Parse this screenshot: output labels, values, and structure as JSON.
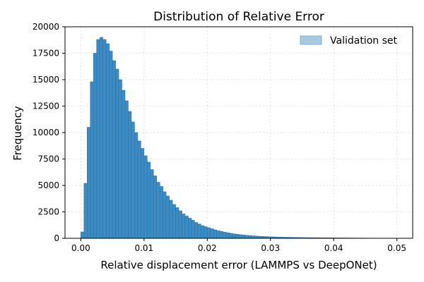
{
  "chart_data": {
    "type": "bar",
    "title": "Distribution of Relative Error",
    "xlabel": "Relative displacement error (LAMMPS vs DeepONet)",
    "ylabel": "Frequency",
    "xlim": [
      -0.0025,
      0.0525
    ],
    "ylim": [
      0,
      20000
    ],
    "xticks": [
      0.0,
      0.01,
      0.02,
      0.03,
      0.04,
      0.05
    ],
    "xtick_labels": [
      "0.00",
      "0.01",
      "0.02",
      "0.03",
      "0.04",
      "0.05"
    ],
    "yticks": [
      0,
      2500,
      5000,
      7500,
      10000,
      12500,
      15000,
      17500,
      20000
    ],
    "ytick_labels": [
      "0",
      "2500",
      "5000",
      "7500",
      "10000",
      "12500",
      "15000",
      "17500",
      "20000"
    ],
    "grid": true,
    "legend": {
      "position": "top-right",
      "entries": [
        "Validation set"
      ]
    },
    "series": [
      {
        "name": "Validation set",
        "bin_width": 0.0005,
        "bin_starts": [
          0.0,
          0.0005,
          0.001,
          0.0015,
          0.002,
          0.0025,
          0.003,
          0.0035,
          0.004,
          0.0045,
          0.005,
          0.0055,
          0.006,
          0.0065,
          0.007,
          0.0075,
          0.008,
          0.0085,
          0.009,
          0.0095,
          0.01,
          0.0105,
          0.011,
          0.0115,
          0.012,
          0.0125,
          0.013,
          0.0135,
          0.014,
          0.0145,
          0.015,
          0.0155,
          0.016,
          0.0165,
          0.017,
          0.0175,
          0.018,
          0.0185,
          0.019,
          0.0195,
          0.02,
          0.0205,
          0.021,
          0.0215,
          0.022,
          0.0225,
          0.023,
          0.0235,
          0.024,
          0.0245,
          0.025,
          0.0255,
          0.026,
          0.0265,
          0.027,
          0.0275,
          0.028,
          0.0285,
          0.029,
          0.0295,
          0.03,
          0.0305,
          0.031,
          0.0315,
          0.032,
          0.0325,
          0.033,
          0.0335,
          0.034,
          0.0345,
          0.035,
          0.0355,
          0.036,
          0.0365,
          0.037,
          0.0375,
          0.038,
          0.0385,
          0.039,
          0.0395,
          0.04,
          0.0405,
          0.041,
          0.0415,
          0.042,
          0.0425,
          0.043,
          0.0435,
          0.044,
          0.0445,
          0.045,
          0.0455,
          0.046,
          0.0465,
          0.047,
          0.0475,
          0.048,
          0.0485,
          0.049,
          0.0495
        ],
        "values": [
          600,
          5200,
          10500,
          14800,
          17500,
          18800,
          19000,
          18800,
          18400,
          17700,
          16800,
          16000,
          15000,
          14000,
          13000,
          12000,
          11000,
          10000,
          9200,
          8500,
          7800,
          7200,
          6500,
          5900,
          5300,
          4900,
          4400,
          4000,
          3600,
          3200,
          2900,
          2600,
          2300,
          2100,
          1900,
          1700,
          1500,
          1350,
          1200,
          1100,
          1000,
          900,
          800,
          720,
          650,
          580,
          520,
          470,
          420,
          380,
          340,
          310,
          280,
          255,
          230,
          210,
          190,
          175,
          160,
          148,
          136,
          125,
          115,
          107,
          99,
          92,
          86,
          80,
          75,
          70,
          66,
          62,
          58,
          55,
          52,
          49,
          46,
          44,
          42,
          40,
          38,
          36,
          34,
          32,
          30,
          28,
          26,
          24,
          22,
          20,
          18,
          16,
          14,
          12,
          11,
          10,
          9,
          8,
          7,
          6
        ]
      }
    ],
    "colors": {
      "fill": "#3e8bc2",
      "edge": "#1f77b4",
      "legend_fill": "#a9c9e3",
      "grid": "#d9d9d9"
    }
  }
}
